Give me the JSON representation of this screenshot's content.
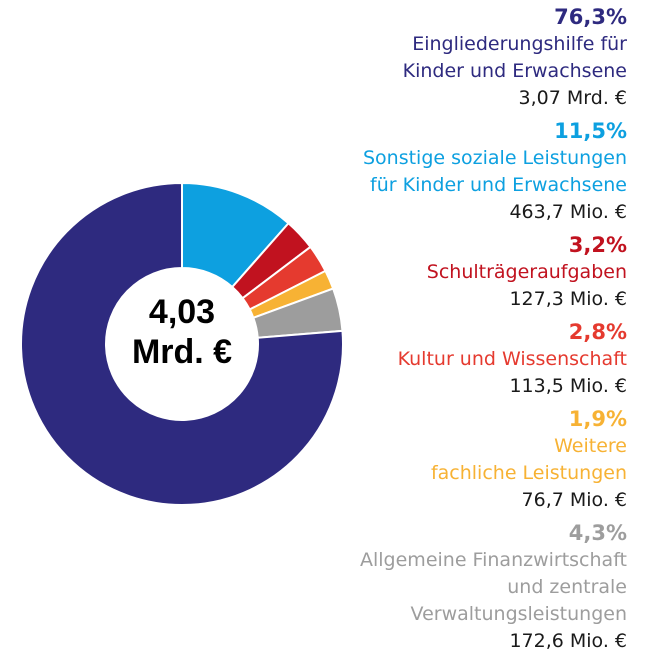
{
  "chart_data": {
    "type": "pie",
    "center_label": [
      "4,03",
      "Mrd. €"
    ],
    "slices": [
      {
        "name": "Eingliederungshilfe für Kinder und Erwachsene",
        "label_lines": [
          "Eingliederungshilfe für",
          "Kinder und Erwachsene"
        ],
        "percent": 76.3,
        "percent_label": "76,3%",
        "amount_label": "3,07 Mrd. €",
        "color": "#2e2a7f"
      },
      {
        "name": "Sonstige soziale Leistungen für Kinder und Erwachsene",
        "label_lines": [
          "Sonstige soziale Leistungen",
          "für Kinder und Erwachsene"
        ],
        "percent": 11.5,
        "percent_label": "11,5%",
        "amount_label": "463,7 Mio. €",
        "color": "#0da0e0"
      },
      {
        "name": "Schulträgeraufgaben",
        "label_lines": [
          "Schulträgeraufgaben"
        ],
        "percent": 3.2,
        "percent_label": "3,2%",
        "amount_label": "127,3 Mio. €",
        "color": "#c1121f"
      },
      {
        "name": "Kultur und Wissenschaft",
        "label_lines": [
          "Kultur und Wissenschaft"
        ],
        "percent": 2.8,
        "percent_label": "2,8%",
        "amount_label": "113,5 Mio. €",
        "color": "#e53a2f"
      },
      {
        "name": "Weitere fachliche Leistungen",
        "label_lines": [
          "Weitere",
          "fachliche Leistungen"
        ],
        "percent": 1.9,
        "percent_label": "1,9%",
        "amount_label": "76,7 Mio. €",
        "color": "#f7b234"
      },
      {
        "name": "Allgemeine Finanzwirtschaft und zentrale Verwaltungsleistungen",
        "label_lines": [
          "Allgemeine Finanzwirtschaft",
          "und zentrale Verwaltungsleistungen"
        ],
        "percent": 4.3,
        "percent_label": "4,3%",
        "amount_label": "172,6 Mio. €",
        "color": "#9d9d9d"
      }
    ],
    "start_at": "12 o'clock",
    "direction": "clockwise, small slices first",
    "slice_order": [
      1,
      2,
      3,
      4,
      5,
      0
    ],
    "legend_position": "right"
  }
}
